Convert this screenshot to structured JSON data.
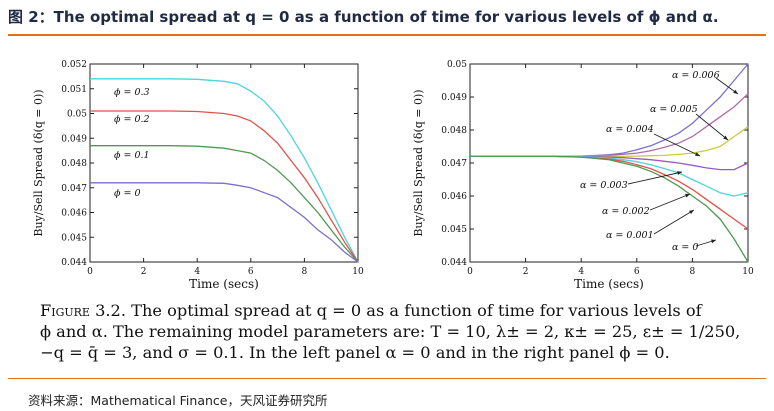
{
  "header": {
    "title": "图 2：The optimal spread at q = 0 as a function of time for various levels of ϕ  and α."
  },
  "chart_data": [
    {
      "type": "line",
      "panel": "left",
      "xlabel": "Time (secs)",
      "ylabel": "Buy/Sell Spread (δ(q = 0))",
      "xlim": [
        0,
        10
      ],
      "ylim": [
        0.044,
        0.052
      ],
      "xticks": [
        "0",
        "2",
        "4",
        "6",
        "8",
        "10"
      ],
      "yticks": [
        "0.044",
        "0.045",
        "0.046",
        "0.047",
        "0.048",
        "0.049",
        "0.05",
        "0.051",
        "0.052"
      ],
      "x": [
        0,
        1,
        2,
        3,
        4,
        5,
        5.5,
        6,
        6.5,
        7,
        7.5,
        8,
        8.5,
        9,
        9.5,
        10
      ],
      "series": [
        {
          "name": "ϕ = 0.3",
          "label": "ϕ = 0.3",
          "color": "#4fd3dc",
          "values": [
            0.0514,
            0.0514,
            0.0514,
            0.0514,
            0.05138,
            0.0513,
            0.0512,
            0.0509,
            0.0505,
            0.0499,
            0.0491,
            0.0482,
            0.0472,
            0.0461,
            0.045,
            0.044
          ]
        },
        {
          "name": "ϕ = 0.2",
          "label": "ϕ = 0.2",
          "color": "#e0524a",
          "values": [
            0.0501,
            0.0501,
            0.0501,
            0.0501,
            0.05008,
            0.05,
            0.0499,
            0.0497,
            0.0493,
            0.0488,
            0.0481,
            0.0474,
            0.0466,
            0.0457,
            0.0448,
            0.044
          ]
        },
        {
          "name": "ϕ = 0.1",
          "label": "ϕ = 0.1",
          "color": "#4f9a52",
          "values": [
            0.0487,
            0.0487,
            0.0487,
            0.0487,
            0.04868,
            0.0486,
            0.0485,
            0.0484,
            0.0481,
            0.0477,
            0.0472,
            0.0466,
            0.046,
            0.0453,
            0.0446,
            0.044
          ]
        },
        {
          "name": "ϕ = 0",
          "label": "ϕ = 0",
          "color": "#7b6fd0",
          "values": [
            0.0472,
            0.0472,
            0.0472,
            0.0472,
            0.0472,
            0.04718,
            0.0471,
            0.047,
            0.0468,
            0.0466,
            0.0462,
            0.0458,
            0.0453,
            0.0449,
            0.0444,
            0.044
          ]
        }
      ]
    },
    {
      "type": "line",
      "panel": "right",
      "xlabel": "Time (secs)",
      "ylabel": "Buy/Sell Spread (δ(q = 0))",
      "xlim": [
        0,
        10
      ],
      "ylim": [
        0.044,
        0.05
      ],
      "xticks": [
        "0",
        "2",
        "4",
        "6",
        "8",
        "10"
      ],
      "yticks": [
        "0.044",
        "0.045",
        "0.046",
        "0.047",
        "0.048",
        "0.049",
        "0.05"
      ],
      "x": [
        0,
        1,
        2,
        3,
        4,
        5,
        5.5,
        6,
        6.5,
        7,
        7.5,
        8,
        8.5,
        9,
        9.5,
        10
      ],
      "series": [
        {
          "name": "α = 0.006",
          "label": "α = 0.006",
          "color": "#7b6fd0",
          "values": [
            0.0472,
            0.0472,
            0.0472,
            0.0472,
            0.04721,
            0.04725,
            0.0473,
            0.0474,
            0.04752,
            0.0477,
            0.0479,
            0.0482,
            0.0486,
            0.049,
            0.0495,
            0.05
          ]
        },
        {
          "name": "α = 0.005",
          "label": "α = 0.005",
          "color": "#b06aa8",
          "values": [
            0.0472,
            0.0472,
            0.0472,
            0.0472,
            0.04721,
            0.04723,
            0.04726,
            0.0473,
            0.04737,
            0.04748,
            0.0476,
            0.0478,
            0.0481,
            0.0484,
            0.0487,
            0.0491
          ]
        },
        {
          "name": "α = 0.004",
          "label": "α = 0.004",
          "color": "#c8cc40",
          "values": [
            0.0472,
            0.0472,
            0.0472,
            0.0472,
            0.0472,
            0.0472,
            0.0472,
            0.04721,
            0.04722,
            0.04723,
            0.04726,
            0.0473,
            0.04738,
            0.0475,
            0.0478,
            0.0481
          ]
        },
        {
          "name": "α = 0.003",
          "label": "α = 0.003",
          "color": "#9a59c8",
          "values": [
            0.0472,
            0.0472,
            0.0472,
            0.0472,
            0.0472,
            0.04718,
            0.04716,
            0.04713,
            0.0471,
            0.04705,
            0.047,
            0.04693,
            0.04685,
            0.0468,
            0.0468,
            0.047
          ]
        },
        {
          "name": "α = 0.002",
          "label": "α = 0.002",
          "color": "#4fd3dc",
          "values": [
            0.0472,
            0.0472,
            0.0472,
            0.0472,
            0.04719,
            0.04715,
            0.0471,
            0.04704,
            0.04695,
            0.04683,
            0.0467,
            0.0465,
            0.0463,
            0.0461,
            0.046,
            0.0461
          ]
        },
        {
          "name": "α = 0.001",
          "label": "α = 0.001",
          "color": "#e0524a",
          "values": [
            0.0472,
            0.0472,
            0.0472,
            0.0472,
            0.04718,
            0.04712,
            0.04705,
            0.04695,
            0.04683,
            0.04665,
            0.04645,
            0.0462,
            0.0459,
            0.0456,
            0.0453,
            0.045
          ]
        },
        {
          "name": "α = 0",
          "label": "α = 0",
          "color": "#4f9a52",
          "values": [
            0.0472,
            0.0472,
            0.0472,
            0.0472,
            0.04718,
            0.0471,
            0.047,
            0.0469,
            0.04675,
            0.04655,
            0.0463,
            0.046,
            0.0457,
            0.0453,
            0.0447,
            0.044
          ]
        }
      ]
    }
  ],
  "caption": {
    "label": "Figure 3.2.",
    "text_line1": "The optimal spread at q = 0 as a function of time for various levels of",
    "text_line2": "ϕ and α. The remaining model parameters are: T = 10, λ± = 2, κ± = 25, ε± = 1/250,",
    "text_line3": "−q = q̄ = 3, and σ = 0.1. In the left panel α = 0 and in the right panel ϕ = 0."
  },
  "footer": {
    "source": "资料来源：Mathematical Finance，天风证券研究所"
  }
}
